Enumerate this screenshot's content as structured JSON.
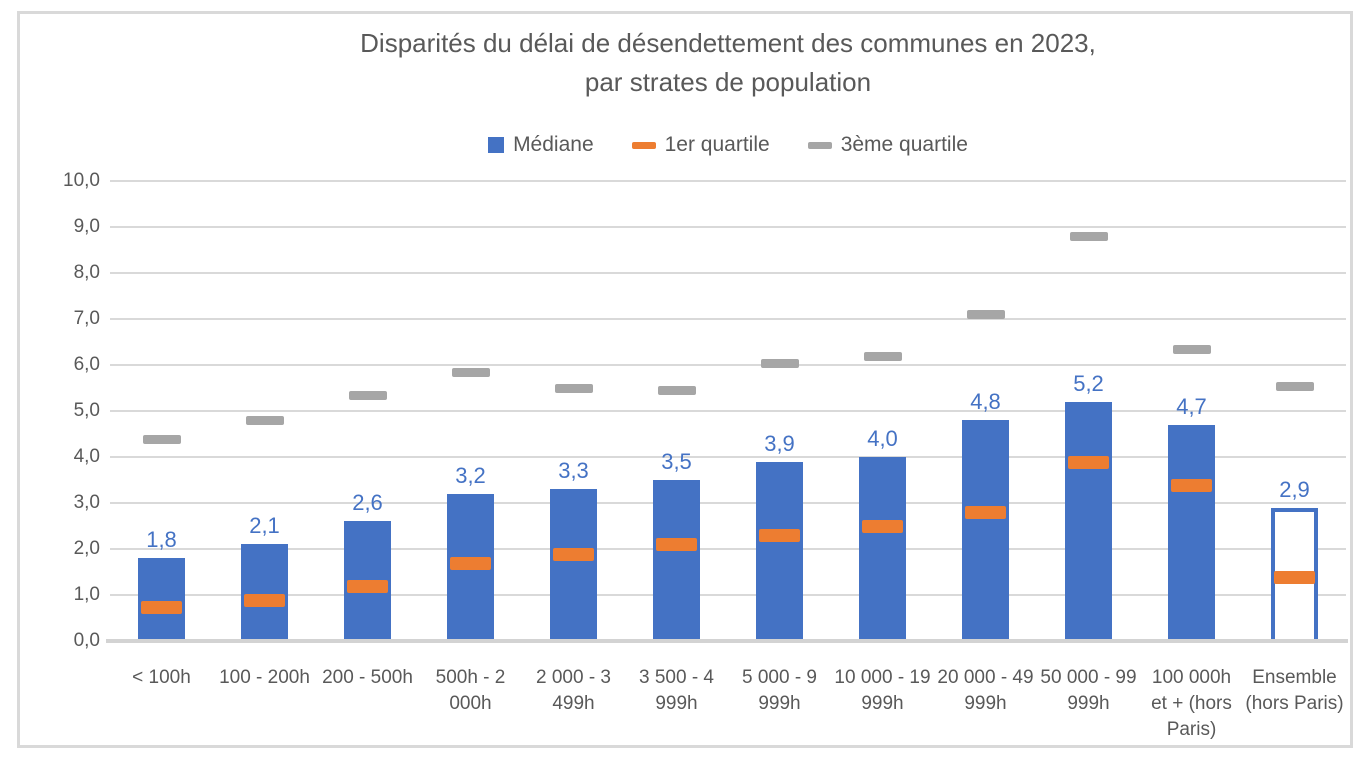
{
  "chart_data": {
    "type": "bar",
    "title": "Disparités du délai de désendettement des communes en 2023, par strates de population",
    "title_lines": [
      "Disparités du délai de désendettement des communes en 2023,",
      "par strates de population"
    ],
    "categories": [
      "< 100h",
      "100 - 200h",
      "200 - 500h",
      "500h - 2 000h",
      "2 000 - 3 499h",
      "3 500 - 4 999h",
      "5 000 - 9 999h",
      "10 000 - 19 999h",
      "20 000 - 49 999h",
      "50 000 - 99 999h",
      "100 000h et + (hors Paris)",
      "Ensemble (hors Paris)"
    ],
    "series": [
      {
        "name": "Médiane",
        "render": "bar",
        "color": "#4472C4",
        "values": [
          1.8,
          2.1,
          2.6,
          3.2,
          3.3,
          3.5,
          3.9,
          4.0,
          4.8,
          5.2,
          4.7,
          2.9
        ],
        "labels": [
          "1,8",
          "2,1",
          "2,6",
          "3,2",
          "3,3",
          "3,5",
          "3,9",
          "4,0",
          "4,8",
          "5,2",
          "4,7",
          "2,9"
        ]
      },
      {
        "name": "1er quartile",
        "render": "dash",
        "color": "#ED7D31",
        "values": [
          0.75,
          0.9,
          1.2,
          1.7,
          1.9,
          2.1,
          2.3,
          2.5,
          2.8,
          3.9,
          3.4,
          1.4
        ]
      },
      {
        "name": "3ème quartile",
        "render": "dash",
        "color": "#A6A6A6",
        "values": [
          4.4,
          4.8,
          5.35,
          5.85,
          5.5,
          5.45,
          6.05,
          6.2,
          7.1,
          8.8,
          6.35,
          5.55
        ]
      }
    ],
    "ylim": [
      0,
      10
    ],
    "ytick_step": 1,
    "ytick_labels": [
      "0,0",
      "1,0",
      "2,0",
      "3,0",
      "4,0",
      "5,0",
      "6,0",
      "7,0",
      "8,0",
      "9,0",
      "10,0"
    ],
    "outline_bar_index": 11,
    "grid": true,
    "legend_position": "top",
    "colors": {
      "gridline": "#D9D9D9",
      "axis_line": "#D3D3D3",
      "axis_text": "#595959",
      "title_text": "#595959",
      "data_label": "#4472C4",
      "frame_border": "#D9D9D9"
    }
  }
}
